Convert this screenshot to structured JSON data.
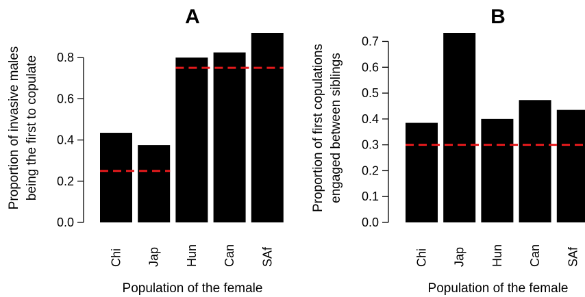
{
  "chart_data": [
    {
      "type": "bar",
      "title": "A",
      "categories": [
        "Chi",
        "Jap",
        "Hun",
        "Can",
        "SAf"
      ],
      "values": [
        0.435,
        0.375,
        0.8,
        0.825,
        0.92
      ],
      "ylim": [
        0,
        0.92
      ],
      "yticks": [
        "0.0",
        "0.2",
        "0.4",
        "0.6",
        "0.8"
      ],
      "ylabel_line1": "Proportion of invasive males",
      "ylabel_line2": "being the first to copulate",
      "xlabel": "Population of the female",
      "bar_color": "#000000",
      "reference_lines": [
        {
          "x_from": "Chi",
          "x_to": "Jap",
          "y": 0.25,
          "color": "#e41a1c",
          "style": "dashed"
        },
        {
          "x_from": "Hun",
          "x_to": "SAf",
          "y": 0.75,
          "color": "#e41a1c",
          "style": "dashed"
        }
      ],
      "grid": false
    },
    {
      "type": "bar",
      "title": "B",
      "categories": [
        "Chi",
        "Jap",
        "Hun",
        "Can",
        "SAf"
      ],
      "values": [
        0.385,
        0.733,
        0.4,
        0.473,
        0.435
      ],
      "ylim": [
        0,
        0.733
      ],
      "yticks": [
        "0.0",
        "0.1",
        "0.2",
        "0.3",
        "0.4",
        "0.5",
        "0.6",
        "0.7"
      ],
      "ylabel_line1": "Proportion of first copulations",
      "ylabel_line2": "engaged between siblings",
      "xlabel": "Population of the female",
      "bar_color": "#000000",
      "reference_lines": [
        {
          "x_from": "Chi",
          "x_to": "SAf",
          "y": 0.3,
          "color": "#e41a1c",
          "style": "dashed"
        }
      ],
      "grid": false
    }
  ]
}
